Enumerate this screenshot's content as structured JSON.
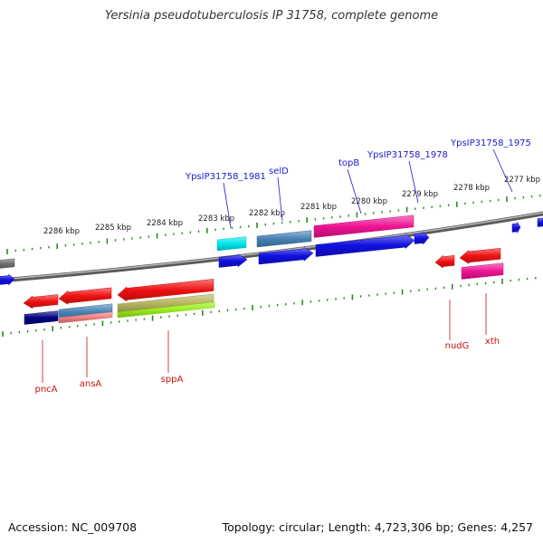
{
  "title": "Yersinia pseudotuberculosis IP 31758, complete genome",
  "footer": {
    "accession": "Accession: NC_009708",
    "topology": "Topology: circular; Length: 4,723,306 bp; Genes: 4,257"
  },
  "scale_labels": [
    "2286 kbp",
    "2285 kbp",
    "2284 kbp",
    "2283 kbp",
    "2282 kbp",
    "2281 kbp",
    "2280 kbp",
    "2279 kbp",
    "2278 kbp",
    "2277 kbp"
  ],
  "genes_top": [
    "YpsIP31758_1981",
    "selD",
    "topB",
    "YpsIP31758_1978",
    "YpsIP31758_1975"
  ],
  "genes_bottom": [
    "pncA",
    "ansA",
    "sppA",
    "nudG",
    "xth"
  ],
  "colors": {
    "backbone": "#808080",
    "tick": "#2e8b22",
    "top_label": "#1a1acc",
    "bottom_label": "#cc1111",
    "cds_forward": "#1010e0",
    "cds_reverse": "#ee1111",
    "cyan": "#00e5ee",
    "steelblue": "#4682b4",
    "pink": "#ee1493",
    "navy": "#000080",
    "salmon": "#f08080",
    "khaki": "#b5b55a",
    "lime": "#9aee1a",
    "gray": "#707070"
  }
}
